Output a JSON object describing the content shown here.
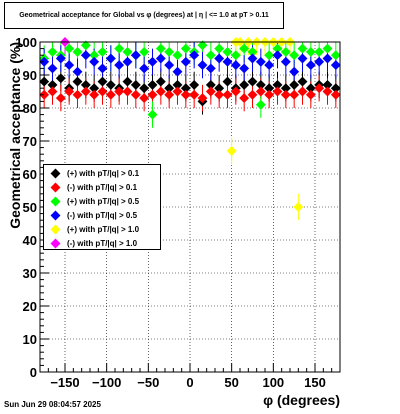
{
  "title": "Geometrical acceptance for Global vs φ (degrees) at |  η  | <= 1.0 at pT > 0.11",
  "footer_text": "Sun Jun 29 08:04:57 2025",
  "chart_data": {
    "type": "scatter",
    "xlabel": "φ (degrees)",
    "ylabel": "Geometrical acceptance (%)",
    "xlim": [
      -180,
      180
    ],
    "ylim": [
      0,
      100
    ],
    "x_ticks": [
      -150,
      -100,
      -50,
      0,
      50,
      100,
      150
    ],
    "x_tick_labels": [
      "−150",
      "−100",
      "−50",
      "0",
      "50",
      "100",
      "150"
    ],
    "y_ticks": [
      0,
      10,
      20,
      30,
      40,
      50,
      60,
      70,
      80,
      90,
      100
    ],
    "y_tick_labels": [
      "0",
      "10",
      "20",
      "30",
      "40",
      "50",
      "60",
      "70",
      "80",
      "90",
      "100"
    ],
    "grid": true,
    "legend_position": "middle-left",
    "series": [
      {
        "name": "(+) with pT/|q| > 0.1",
        "color": "#000000",
        "x": [
          -175,
          -165,
          -155,
          -145,
          -135,
          -125,
          -115,
          -105,
          -95,
          -85,
          -75,
          -65,
          -55,
          -45,
          -35,
          -25,
          -15,
          -5,
          5,
          15,
          25,
          35,
          45,
          55,
          65,
          75,
          85,
          95,
          105,
          115,
          125,
          135,
          145,
          155,
          165,
          175
        ],
        "y": [
          88,
          87,
          89,
          86,
          88,
          87,
          86,
          88,
          87,
          86,
          88,
          87,
          86,
          87,
          88,
          86,
          87,
          86,
          87,
          82,
          87,
          86,
          88,
          86,
          87,
          88,
          87,
          86,
          87,
          86,
          87,
          88,
          86,
          87,
          87,
          86
        ]
      },
      {
        "name": "(-) with pT/|q| > 0.1",
        "color": "#ff0000",
        "x": [
          -175,
          -165,
          -155,
          -145,
          -135,
          -125,
          -115,
          -105,
          -95,
          -85,
          -75,
          -65,
          -55,
          -45,
          -35,
          -25,
          -15,
          -5,
          5,
          15,
          25,
          35,
          45,
          55,
          65,
          75,
          85,
          95,
          105,
          115,
          125,
          135,
          145,
          155,
          165,
          175
        ],
        "y": [
          84,
          85,
          83,
          85,
          84,
          85,
          84,
          85,
          84,
          85,
          85,
          84,
          83,
          84,
          85,
          84,
          85,
          84,
          84,
          83,
          85,
          84,
          84,
          85,
          83,
          84,
          85,
          84,
          85,
          84,
          84,
          85,
          84,
          86,
          85,
          84
        ]
      },
      {
        "name": "(+) with pT/|q| > 0.5",
        "color": "#00ff00",
        "x": [
          -175,
          -165,
          -155,
          -145,
          -135,
          -125,
          -115,
          -105,
          -95,
          -85,
          -75,
          -65,
          -55,
          -45,
          -35,
          -25,
          -15,
          -5,
          5,
          15,
          25,
          35,
          45,
          55,
          65,
          75,
          85,
          95,
          105,
          115,
          125,
          135,
          145,
          155,
          165,
          175
        ],
        "y": [
          95,
          97,
          96,
          98,
          97,
          99,
          96,
          97,
          95,
          98,
          97,
          96,
          97,
          78,
          98,
          97,
          96,
          98,
          97,
          99,
          96,
          98,
          97,
          96,
          98,
          97,
          81,
          96,
          98,
          97,
          96,
          98,
          97,
          97,
          98,
          96
        ]
      },
      {
        "name": "(-) with pT/|q| > 0.5",
        "color": "#0000ff",
        "x": [
          -175,
          -165,
          -155,
          -145,
          -135,
          -125,
          -115,
          -105,
          -95,
          -85,
          -75,
          -65,
          -55,
          -45,
          -35,
          -25,
          -15,
          -5,
          5,
          15,
          25,
          35,
          45,
          55,
          65,
          75,
          85,
          95,
          105,
          115,
          125,
          135,
          145,
          155,
          165,
          175
        ],
        "y": [
          94,
          92,
          95,
          93,
          91,
          96,
          94,
          92,
          95,
          93,
          94,
          96,
          92,
          94,
          95,
          93,
          91,
          94,
          96,
          93,
          92,
          95,
          94,
          93,
          92,
          95,
          94,
          93,
          96,
          94,
          91,
          95,
          93,
          94,
          95,
          93
        ]
      },
      {
        "name": "(+) with pT/|q| > 1.0",
        "color": "#ffff00",
        "x": [
          50,
          55,
          60,
          70,
          80,
          90,
          100,
          110,
          120,
          130
        ],
        "y": [
          67,
          100,
          100,
          100,
          100,
          100,
          100,
          100,
          100,
          50
        ]
      },
      {
        "name": "(-) with pT/|q| > 1.0",
        "color": "#ff00ff",
        "x": [
          -150
        ],
        "y": [
          100
        ]
      }
    ]
  }
}
